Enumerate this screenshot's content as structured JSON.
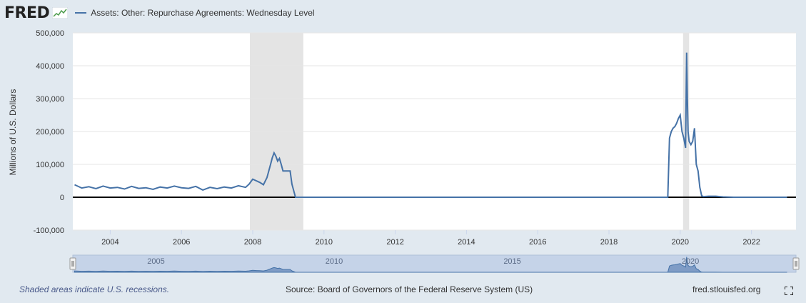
{
  "header": {
    "logo_text": "FRED",
    "legend_label": "Assets: Other: Repurchase Agreements: Wednesday Level"
  },
  "footer": {
    "recession_note": "Shaded areas indicate U.S. recessions.",
    "source": "Source: Board of Governors of the Federal Reserve System (US)",
    "site": "fred.stlouisfed.org"
  },
  "colors": {
    "series": "#4572a7",
    "recession": "#e4e4e4",
    "background": "#e1e9f0",
    "plot": "#ffffff",
    "navigator_fill": "#7f9cc6"
  },
  "icons": [
    "fred-sparkline-icon",
    "fullscreen-icon",
    "navigator-handle-icon"
  ],
  "chart_data": {
    "type": "line",
    "title": "",
    "ylabel": "Millions of U.S. Dollars",
    "xlim": [
      2002.95,
      2023.25
    ],
    "ylim": [
      -100000,
      500000
    ],
    "yticks": [
      -100000,
      0,
      100000,
      200000,
      300000,
      400000,
      500000
    ],
    "ytick_labels": [
      "-100,000",
      "0",
      "100,000",
      "200,000",
      "300,000",
      "400,000",
      "500,000"
    ],
    "xticks": [
      2004,
      2006,
      2008,
      2010,
      2012,
      2014,
      2016,
      2018,
      2020,
      2022
    ],
    "xtick_labels": [
      "2004",
      "2006",
      "2008",
      "2010",
      "2012",
      "2014",
      "2016",
      "2018",
      "2020",
      "2022"
    ],
    "recessions": [
      [
        2007.92,
        2009.42
      ],
      [
        2020.08,
        2020.25
      ]
    ],
    "navigator_labels": [
      {
        "x": 2005,
        "text": "2005"
      },
      {
        "x": 2010,
        "text": "2010"
      },
      {
        "x": 2015,
        "text": "2015"
      },
      {
        "x": 2020,
        "text": "2020"
      }
    ],
    "grid": "horizontal",
    "series": [
      {
        "name": "Assets: Other: Repurchase Agreements: Wednesday Level",
        "x": [
          2003.0,
          2003.2,
          2003.4,
          2003.6,
          2003.8,
          2004.0,
          2004.2,
          2004.4,
          2004.6,
          2004.8,
          2005.0,
          2005.2,
          2005.4,
          2005.6,
          2005.8,
          2006.0,
          2006.2,
          2006.4,
          2006.6,
          2006.8,
          2007.0,
          2007.2,
          2007.4,
          2007.6,
          2007.8,
          2007.9,
          2008.0,
          2008.1,
          2008.2,
          2008.3,
          2008.4,
          2008.5,
          2008.55,
          2008.6,
          2008.65,
          2008.7,
          2008.75,
          2008.8,
          2008.85,
          2008.9,
          2009.0,
          2009.05,
          2009.1,
          2009.2,
          2019.65,
          2019.7,
          2019.75,
          2019.8,
          2019.85,
          2019.9,
          2019.95,
          2020.0,
          2020.05,
          2020.1,
          2020.15,
          2020.18,
          2020.2,
          2020.22,
          2020.25,
          2020.3,
          2020.35,
          2020.4,
          2020.45,
          2020.5,
          2020.55,
          2020.6,
          2020.65,
          2020.8,
          2021.0,
          2021.2,
          2021.5,
          2022.0,
          2023.0
        ],
        "y": [
          38000,
          28000,
          32000,
          26000,
          34000,
          28000,
          30000,
          25000,
          33000,
          27000,
          29000,
          24000,
          31000,
          28000,
          34000,
          29000,
          27000,
          33000,
          22000,
          30000,
          26000,
          31000,
          28000,
          35000,
          30000,
          40000,
          55000,
          50000,
          45000,
          38000,
          60000,
          100000,
          120000,
          135000,
          125000,
          110000,
          118000,
          100000,
          80000,
          80000,
          80000,
          80000,
          40000,
          0,
          0,
          180000,
          200000,
          210000,
          215000,
          225000,
          240000,
          250000,
          200000,
          180000,
          150000,
          440000,
          300000,
          200000,
          170000,
          160000,
          170000,
          210000,
          100000,
          80000,
          30000,
          5000,
          2000,
          3000,
          3000,
          1000,
          0,
          0,
          0
        ]
      }
    ]
  }
}
